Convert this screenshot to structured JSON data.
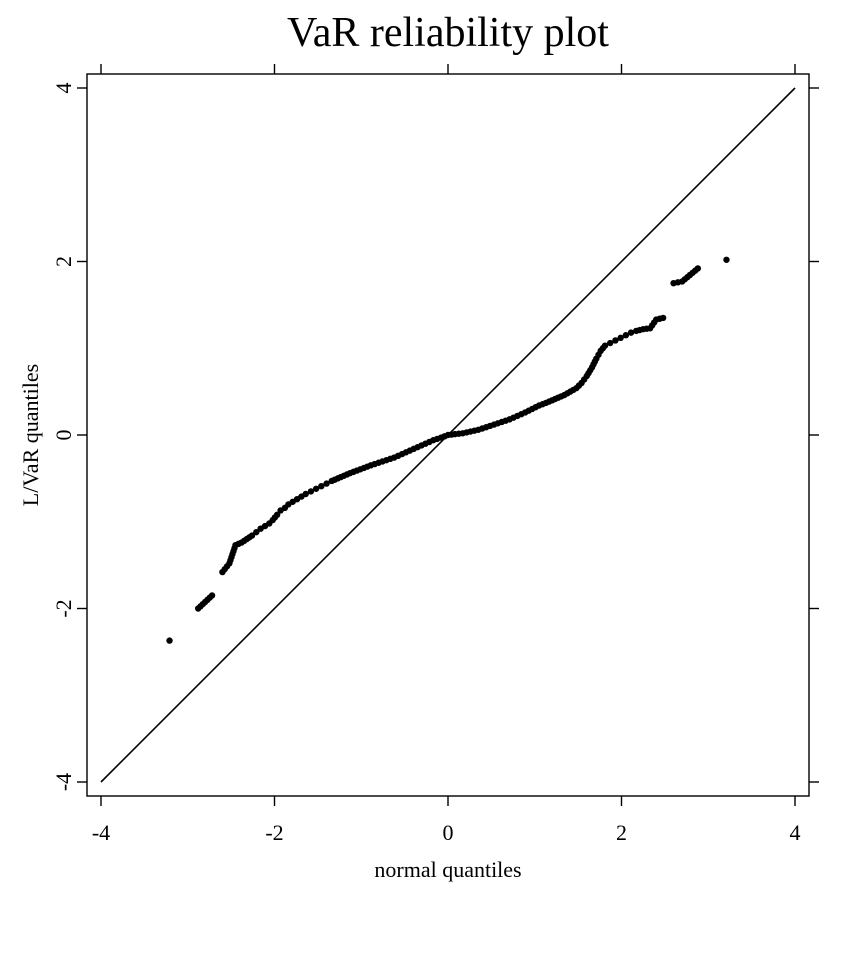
{
  "chart_data": {
    "type": "scatter",
    "title": "VaR reliability plot",
    "xlabel": "normal quantiles",
    "ylabel": "L/VaR quantiles",
    "xlim": [
      -4,
      4
    ],
    "ylim": [
      -4,
      4
    ],
    "xticks": [
      -4,
      -2,
      0,
      2,
      4
    ],
    "yticks": [
      -4,
      -2,
      0,
      2,
      4
    ],
    "xtick_labels": [
      "-4",
      "-2",
      "0",
      "2",
      "4"
    ],
    "ytick_labels": [
      "-4",
      "-2",
      "0",
      "2",
      "4"
    ],
    "grid": false,
    "reference_line": {
      "x": [
        -4,
        4
      ],
      "y": [
        -4,
        4
      ]
    },
    "series": [
      {
        "points": [
          [
            -3.21,
            -2.37
          ],
          [
            -2.88,
            -2.0
          ],
          [
            -2.72,
            -1.85
          ],
          [
            -2.6,
            -1.58
          ],
          [
            -2.52,
            -1.48
          ],
          [
            -2.45,
            -1.27
          ],
          [
            -2.38,
            -1.24
          ],
          [
            -2.32,
            -1.2
          ],
          [
            -2.26,
            -1.16
          ],
          [
            -2.21,
            -1.12
          ],
          [
            -2.16,
            -1.08
          ],
          [
            -2.11,
            -1.05
          ],
          [
            -2.06,
            -1.02
          ],
          [
            -2.02,
            -0.98
          ],
          [
            -1.97,
            -0.92
          ],
          [
            -1.93,
            -0.87
          ],
          [
            -1.88,
            -0.84
          ],
          [
            -1.84,
            -0.8
          ],
          [
            -1.79,
            -0.77
          ],
          [
            -1.74,
            -0.74
          ],
          [
            -1.69,
            -0.71
          ],
          [
            -1.64,
            -0.68
          ],
          [
            -1.58,
            -0.65
          ],
          [
            -1.52,
            -0.62
          ],
          [
            -1.46,
            -0.59
          ],
          [
            -1.4,
            -0.56
          ],
          [
            -1.34,
            -0.53
          ],
          [
            -1.27,
            -0.5
          ],
          [
            -1.2,
            -0.47
          ],
          [
            -1.13,
            -0.44
          ],
          [
            -1.05,
            -0.41
          ],
          [
            -0.97,
            -0.38
          ],
          [
            -0.89,
            -0.35
          ],
          [
            -0.8,
            -0.32
          ],
          [
            -0.71,
            -0.29
          ],
          [
            -0.62,
            -0.26
          ],
          [
            -0.53,
            -0.22
          ],
          [
            -0.44,
            -0.18
          ],
          [
            -0.35,
            -0.14
          ],
          [
            -0.26,
            -0.1
          ],
          [
            -0.17,
            -0.06
          ],
          [
            -0.08,
            -0.03
          ],
          [
            0.0,
            0.0
          ],
          [
            0.08,
            0.01
          ],
          [
            0.17,
            0.02
          ],
          [
            0.26,
            0.04
          ],
          [
            0.35,
            0.06
          ],
          [
            0.44,
            0.09
          ],
          [
            0.53,
            0.12
          ],
          [
            0.62,
            0.15
          ],
          [
            0.71,
            0.18
          ],
          [
            0.8,
            0.22
          ],
          [
            0.89,
            0.26
          ],
          [
            0.97,
            0.3
          ],
          [
            1.05,
            0.34
          ],
          [
            1.13,
            0.37
          ],
          [
            1.2,
            0.4
          ],
          [
            1.27,
            0.43
          ],
          [
            1.34,
            0.46
          ],
          [
            1.41,
            0.5
          ],
          [
            1.48,
            0.54
          ],
          [
            1.54,
            0.6
          ],
          [
            1.6,
            0.68
          ],
          [
            1.66,
            0.78
          ],
          [
            1.71,
            0.88
          ],
          [
            1.76,
            0.97
          ],
          [
            1.81,
            1.03
          ],
          [
            1.87,
            1.06
          ],
          [
            1.93,
            1.09
          ],
          [
            1.99,
            1.12
          ],
          [
            2.05,
            1.15
          ],
          [
            2.11,
            1.18
          ],
          [
            2.17,
            1.2
          ],
          [
            2.25,
            1.22
          ],
          [
            2.33,
            1.23
          ],
          [
            2.4,
            1.33
          ],
          [
            2.48,
            1.35
          ],
          [
            2.6,
            1.75
          ],
          [
            2.7,
            1.77
          ],
          [
            2.88,
            1.92
          ],
          [
            3.21,
            2.02
          ]
        ]
      }
    ]
  }
}
